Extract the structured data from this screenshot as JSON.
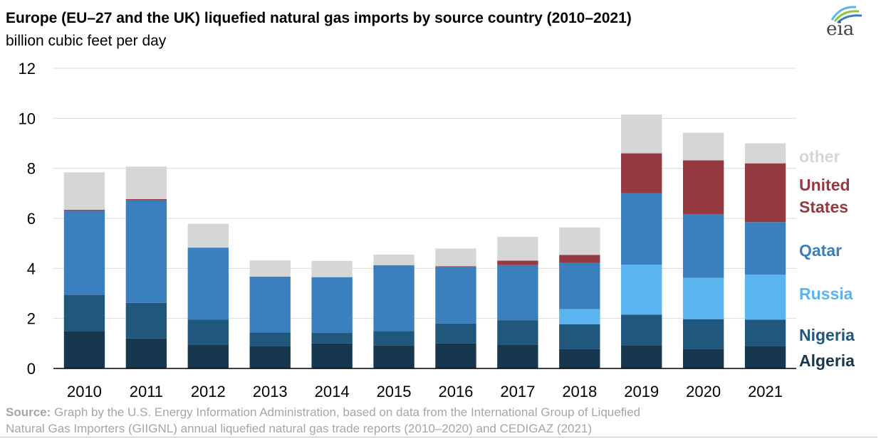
{
  "header": {
    "title": "Europe (EU–27 and the UK) liquefied natural gas imports by source country (2010–2021)",
    "subtitle": "billion cubic feet per day"
  },
  "logo": {
    "text": "eia",
    "icon": "eia-logo-icon"
  },
  "source": {
    "label": "Source:",
    "line1": " Graph by the U.S. Energy Information Administration, based on data from the International Group of Liquefied",
    "line2": "Natural Gas Importers (GIIGNL) annual liquefied natural gas trade reports (2010–2020) and CEDIGAZ (2021)"
  },
  "chart_data": {
    "type": "bar",
    "stacked": true,
    "categories": [
      "2010",
      "2011",
      "2012",
      "2013",
      "2014",
      "2015",
      "2016",
      "2017",
      "2018",
      "2019",
      "2020",
      "2021"
    ],
    "ylim": [
      0,
      12
    ],
    "yticks": [
      "0",
      "2",
      "4",
      "6",
      "8",
      "10",
      "12"
    ],
    "grid": true,
    "legend": "right",
    "series": [
      {
        "name": "Algeria",
        "color": "#17374f",
        "values": [
          1.5,
          1.2,
          0.95,
          0.9,
          1.0,
          0.92,
          1.0,
          0.95,
          0.77,
          0.93,
          0.77,
          0.9
        ]
      },
      {
        "name": "Nigeria",
        "color": "#21567d",
        "values": [
          1.45,
          1.42,
          1.0,
          0.54,
          0.42,
          0.58,
          0.8,
          0.98,
          1.0,
          1.22,
          1.2,
          1.05
        ]
      },
      {
        "name": "Russia",
        "color": "#5ab4f0",
        "values": [
          0,
          0,
          0,
          0,
          0,
          0,
          0,
          0,
          0.6,
          2.0,
          1.65,
          1.8
        ]
      },
      {
        "name": "Qatar",
        "color": "#3a80be",
        "values": [
          3.35,
          4.1,
          2.88,
          2.23,
          2.23,
          2.63,
          2.27,
          2.2,
          1.85,
          2.85,
          2.55,
          2.1
        ]
      },
      {
        "name": "United States",
        "color": "#953a41",
        "values": [
          0.04,
          0.05,
          0,
          0,
          0,
          0,
          0.02,
          0.18,
          0.32,
          1.6,
          2.15,
          2.35
        ]
      },
      {
        "name": "other",
        "color": "#d6d6d6",
        "values": [
          1.5,
          1.3,
          0.95,
          0.65,
          0.65,
          0.42,
          0.7,
          0.95,
          1.1,
          1.55,
          1.1,
          0.8
        ]
      }
    ],
    "legend_labels": [
      {
        "series": "other",
        "lines": [
          "other"
        ]
      },
      {
        "series": "United States",
        "lines": [
          "United",
          "States"
        ]
      },
      {
        "series": "Qatar",
        "lines": [
          "Qatar"
        ]
      },
      {
        "series": "Russia",
        "lines": [
          "Russia"
        ]
      },
      {
        "series": "Nigeria",
        "lines": [
          "Nigeria"
        ]
      },
      {
        "series": "Algeria",
        "lines": [
          "Algeria"
        ]
      }
    ]
  }
}
